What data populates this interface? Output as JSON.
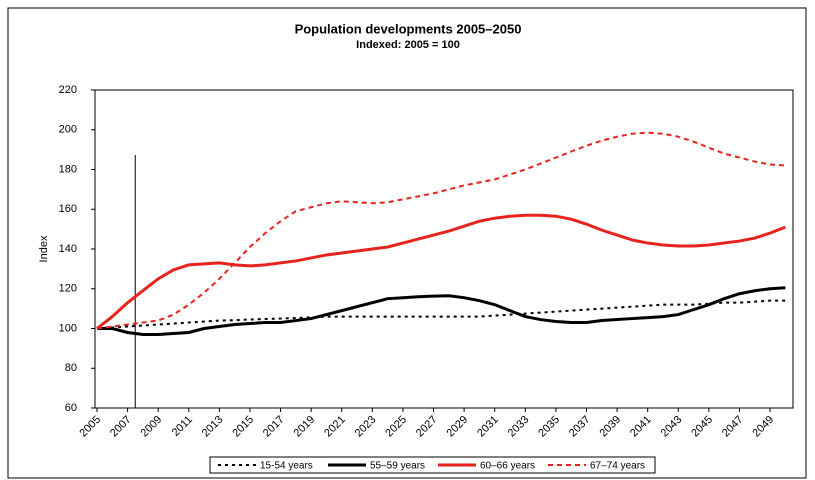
{
  "chart_data": {
    "type": "line",
    "title": "Population developments 2005–2050",
    "subtitle": "Indexed: 2005 = 100",
    "y_label": "Index",
    "x": [
      2005,
      2006,
      2007,
      2008,
      2009,
      2010,
      2011,
      2012,
      2013,
      2014,
      2015,
      2016,
      2017,
      2018,
      2019,
      2020,
      2021,
      2022,
      2023,
      2024,
      2025,
      2026,
      2027,
      2028,
      2029,
      2030,
      2031,
      2032,
      2033,
      2034,
      2035,
      2036,
      2037,
      2038,
      2039,
      2040,
      2041,
      2042,
      2043,
      2044,
      2045,
      2046,
      2047,
      2048,
      2049,
      2050
    ],
    "series": [
      {
        "name": "15-54 years",
        "color": "#000000",
        "style": "dotted",
        "values": [
          100,
          100.5,
          101,
          101.5,
          102,
          102.5,
          103,
          103.5,
          104,
          104.2,
          104.5,
          104.8,
          105,
          105.3,
          105.6,
          106,
          106,
          106,
          106,
          106,
          106,
          106,
          106,
          106,
          106,
          106,
          106.5,
          107,
          107.5,
          108,
          108.5,
          109,
          109.5,
          110,
          110.5,
          111,
          111.5,
          112,
          112,
          112,
          112.5,
          113,
          113,
          113.5,
          114,
          114
        ]
      },
      {
        "name": "55–59 years",
        "color": "#000000",
        "style": "solid",
        "values": [
          100,
          100,
          98,
          97,
          97,
          97.5,
          98,
          100,
          101,
          102,
          102.5,
          103,
          103,
          104,
          105,
          107,
          109,
          111,
          113,
          115,
          115.5,
          116,
          116.3,
          116.5,
          115.5,
          114,
          112,
          109,
          106,
          104.5,
          103.5,
          103,
          103,
          104,
          104.5,
          105,
          105.5,
          106,
          107,
          109.5,
          112,
          115,
          117.5,
          119,
          120,
          120.5
        ]
      },
      {
        "name": "60–66 years",
        "color": "#e8221c",
        "style": "solid",
        "values": [
          100,
          106,
          113,
          119,
          125,
          129.5,
          132,
          132.5,
          133,
          132,
          131.5,
          132,
          133,
          134,
          135.5,
          137,
          138,
          139,
          140,
          141,
          143,
          145,
          147,
          149,
          151.5,
          154,
          155.5,
          156.5,
          157,
          157,
          156.5,
          155,
          152.5,
          149.5,
          147,
          144.5,
          143,
          142,
          141.5,
          141.5,
          142,
          143,
          144,
          145.5,
          148,
          151
        ]
      },
      {
        "name": "67–74 years",
        "color": "#e8221c",
        "style": "dashed",
        "values": [
          100,
          101,
          102,
          103,
          104,
          107,
          112,
          118,
          125,
          133,
          141,
          148,
          154,
          159,
          161,
          163,
          164,
          163.5,
          163,
          163.5,
          165,
          166.5,
          168,
          170,
          172,
          173.5,
          175,
          177.5,
          180,
          183,
          186,
          189,
          192,
          194.5,
          196.5,
          198,
          198.5,
          198,
          196.5,
          194,
          191,
          188,
          186,
          184,
          182.5,
          182
        ]
      }
    ],
    "reference_line_x": 2007.5,
    "xlim": [
      2005,
      2050.5
    ],
    "xticks": [
      2005,
      2007,
      2009,
      2011,
      2013,
      2015,
      2017,
      2019,
      2021,
      2023,
      2025,
      2027,
      2029,
      2031,
      2033,
      2035,
      2037,
      2039,
      2041,
      2043,
      2045,
      2047,
      2049
    ],
    "ylim": [
      60,
      220
    ],
    "yticks": [
      60,
      80,
      100,
      120,
      140,
      160,
      180,
      200,
      220
    ],
    "legend": "bottom"
  }
}
